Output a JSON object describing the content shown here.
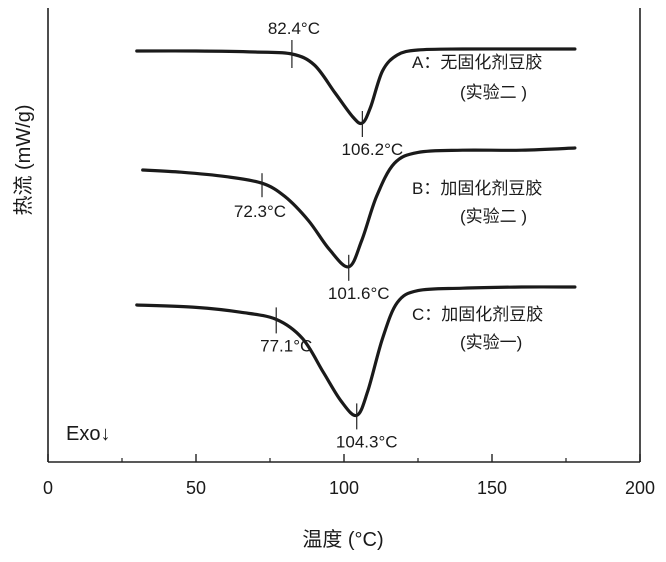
{
  "chart_data": {
    "type": "line",
    "title": "",
    "xlabel": "温度 (°C)",
    "ylabel": "热流 (mW/g)",
    "xlim": [
      0,
      200
    ],
    "xticks": [
      0,
      50,
      100,
      150,
      200
    ],
    "y_ticks_shown": false,
    "grid": false,
    "exo_label": "Exo",
    "exo_arrow": "↓",
    "series": [
      {
        "label": "A：无固化剂豆胶",
        "label2": "(实验二 )",
        "color": "#1a1a1a",
        "curve": [
          [
            30,
            0.0
          ],
          [
            50,
            0.0
          ],
          [
            70,
            -0.05
          ],
          [
            82.4,
            -0.15
          ],
          [
            90,
            -0.7
          ],
          [
            97,
            -2.1
          ],
          [
            103,
            -3.3
          ],
          [
            106.2,
            -3.6
          ],
          [
            109,
            -2.8
          ],
          [
            113,
            -1.0
          ],
          [
            118,
            -0.2
          ],
          [
            125,
            0.05
          ],
          [
            140,
            0.1
          ],
          [
            160,
            0.1
          ],
          [
            178,
            0.1
          ]
        ],
        "annotations": [
          {
            "label": "82.4°C",
            "x": 82.4,
            "pos": "above"
          },
          {
            "label": "106.2°C",
            "x": 106.2,
            "pos": "below"
          }
        ]
      },
      {
        "label": "B：加固化剂豆胶",
        "label2": "(实验二 )",
        "color": "#1a1a1a",
        "curve": [
          [
            32,
            0.0
          ],
          [
            45,
            -0.1
          ],
          [
            60,
            -0.3
          ],
          [
            72.3,
            -0.6
          ],
          [
            80,
            -1.2
          ],
          [
            88,
            -2.3
          ],
          [
            95,
            -3.6
          ],
          [
            101.6,
            -4.4
          ],
          [
            106,
            -3.2
          ],
          [
            111,
            -1.2
          ],
          [
            117,
            0.3
          ],
          [
            125,
            0.8
          ],
          [
            140,
            0.9
          ],
          [
            160,
            0.9
          ],
          [
            178,
            1.0
          ]
        ],
        "annotations": [
          {
            "label": "72.3°C",
            "x": 72.3,
            "pos": "below-left"
          },
          {
            "label": "101.6°C",
            "x": 101.6,
            "pos": "below"
          }
        ]
      },
      {
        "label": "C：加固化剂豆胶",
        "label2": "(实验一)",
        "color": "#1a1a1a",
        "curve": [
          [
            30,
            0.0
          ],
          [
            50,
            -0.1
          ],
          [
            65,
            -0.3
          ],
          [
            77.1,
            -0.6
          ],
          [
            86,
            -1.4
          ],
          [
            93,
            -2.8
          ],
          [
            99,
            -4.0
          ],
          [
            104.3,
            -4.6
          ],
          [
            108,
            -3.6
          ],
          [
            113,
            -1.4
          ],
          [
            118,
            0.1
          ],
          [
            125,
            0.6
          ],
          [
            140,
            0.7
          ],
          [
            160,
            0.75
          ],
          [
            178,
            0.75
          ]
        ],
        "annotations": [
          {
            "label": "77.1°C",
            "x": 77.1,
            "pos": "below"
          },
          {
            "label": "104.3°C",
            "x": 104.3,
            "pos": "below"
          }
        ]
      }
    ]
  }
}
